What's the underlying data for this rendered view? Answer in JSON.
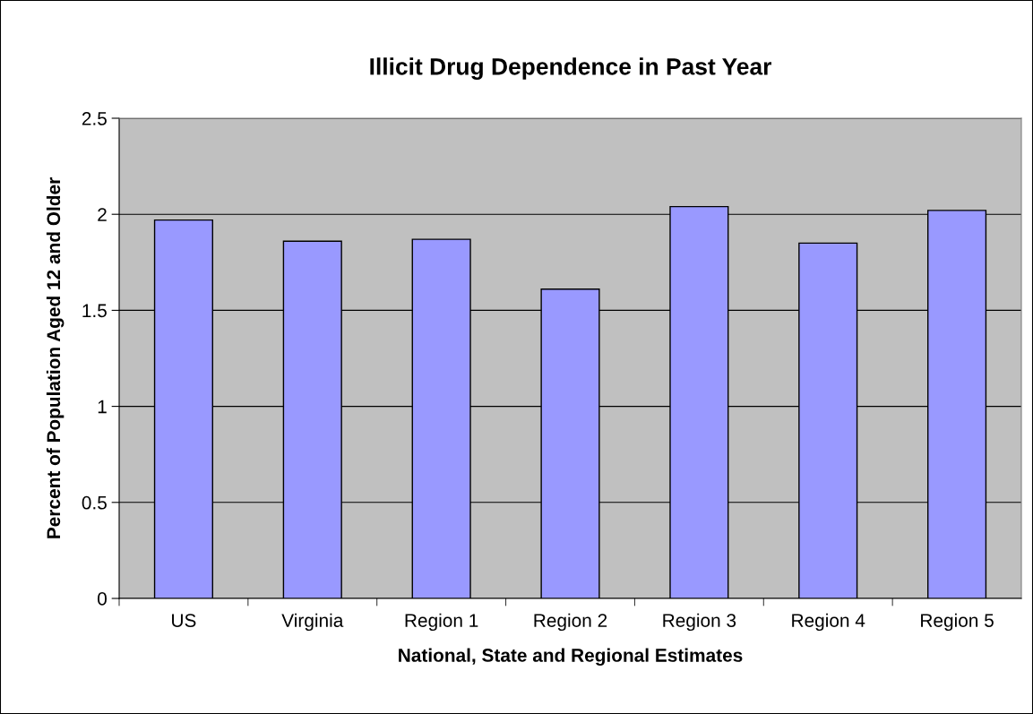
{
  "chart_data": {
    "type": "bar",
    "title": "Illicit Drug Dependence in Past Year",
    "xlabel": "National, State and Regional Estimates",
    "ylabel": "Percent of Population Aged 12 and Older",
    "categories": [
      "US",
      "Virginia",
      "Region 1",
      "Region 2",
      "Region 3",
      "Region 4",
      "Region 5"
    ],
    "values": [
      1.97,
      1.86,
      1.87,
      1.61,
      2.04,
      1.85,
      2.02
    ],
    "color": "#9999ff",
    "ylim": [
      0,
      2.5
    ],
    "yticks": [
      0,
      0.5,
      1,
      1.5,
      2,
      2.5
    ],
    "grid": "y",
    "legend": false
  }
}
